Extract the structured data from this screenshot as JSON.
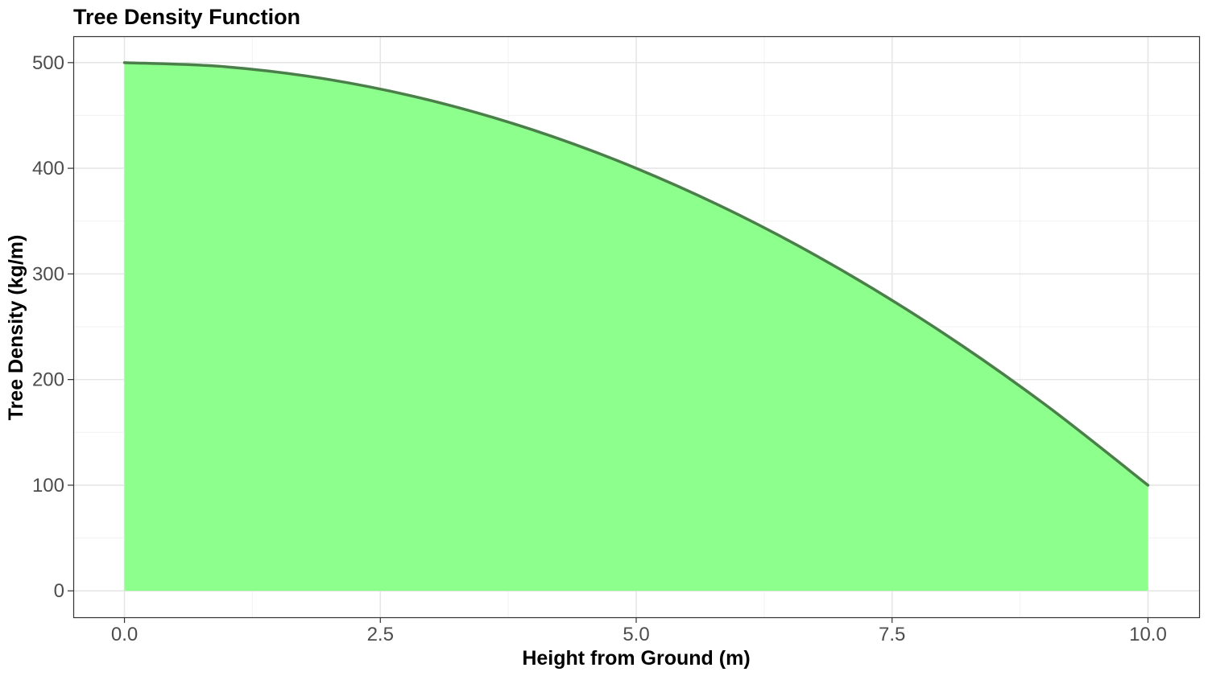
{
  "chart_data": {
    "type": "area",
    "title": "Tree Density Function",
    "xlabel": "Height from Ground (m)",
    "ylabel": "Tree Density (kg/m)",
    "xlim": [
      -0.5,
      10.5
    ],
    "ylim": [
      -25,
      525
    ],
    "x_ticks": [
      0,
      2.5,
      5,
      7.5,
      10
    ],
    "x_tick_labels": [
      "0.0",
      "2.5",
      "5.0",
      "7.5",
      "10.0"
    ],
    "y_ticks": [
      0,
      100,
      200,
      300,
      400,
      500
    ],
    "y_tick_labels": [
      "0",
      "100",
      "200",
      "300",
      "400",
      "500"
    ],
    "grid": true,
    "series": [
      {
        "x": [
          0,
          1,
          2,
          3,
          4,
          5,
          6,
          7,
          8,
          9,
          10
        ],
        "y": [
          500,
          496,
          484,
          464,
          436,
          400,
          356,
          304,
          244,
          176,
          100
        ],
        "fill_color": "#8cff8c",
        "line_color": "#4a7f4a"
      }
    ]
  }
}
